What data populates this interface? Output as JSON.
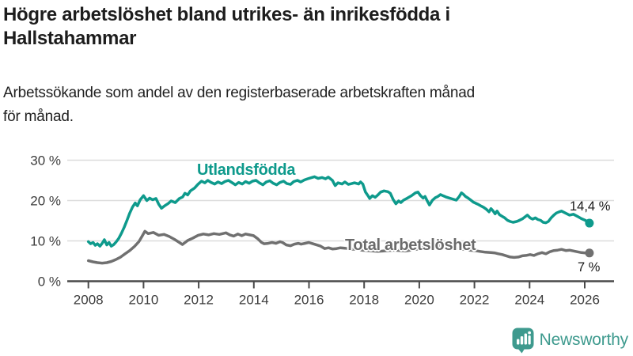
{
  "header": {
    "title_lines": [
      "Högre arbetslöshet bland utrikes- än inrikesfödda i",
      "Hallstahammar"
    ],
    "subtitle_lines": [
      "Arbetssökande som andel av den registerbaserade arbetskraften månad",
      "för månad."
    ]
  },
  "chart_data": {
    "type": "line",
    "title": "Högre arbetslöshet bland utrikes- än inrikesfödda i Hallstahammar",
    "subtitle": "Arbetssökande som andel av den registerbaserade arbetskraften månad för månad.",
    "xlabel": "",
    "ylabel": "",
    "x_domain": [
      2007.9,
      2026.6
    ],
    "y_domain": [
      0,
      32
    ],
    "grid": "horizontal",
    "y_grid_values": [
      10,
      20,
      30
    ],
    "y_ticks": [
      {
        "value": 0,
        "label": "0 %"
      },
      {
        "value": 10,
        "label": "10 %"
      },
      {
        "value": 20,
        "label": "20 %"
      },
      {
        "value": 30,
        "label": "30 %"
      }
    ],
    "x_ticks": [
      {
        "value": 2008,
        "label": "2008"
      },
      {
        "value": 2010,
        "label": "2010"
      },
      {
        "value": 2012,
        "label": "2012"
      },
      {
        "value": 2014,
        "label": "2014"
      },
      {
        "value": 2016,
        "label": "2016"
      },
      {
        "value": 2018,
        "label": "2018"
      },
      {
        "value": 2020,
        "label": "2020"
      },
      {
        "value": 2022,
        "label": "2022"
      },
      {
        "value": 2024,
        "label": "2024"
      },
      {
        "value": 2026,
        "label": "2026"
      }
    ],
    "series": [
      {
        "name": "Utlandsfödda",
        "color": "#0e9a8c",
        "end_label": "14,4 %",
        "end_value": 14.4,
        "points": [
          [
            2008.0,
            9.8
          ],
          [
            2008.08,
            9.3
          ],
          [
            2008.17,
            9.6
          ],
          [
            2008.25,
            8.9
          ],
          [
            2008.33,
            9.3
          ],
          [
            2008.42,
            8.7
          ],
          [
            2008.5,
            9.4
          ],
          [
            2008.58,
            10.3
          ],
          [
            2008.67,
            9.0
          ],
          [
            2008.75,
            9.6
          ],
          [
            2008.83,
            8.7
          ],
          [
            2008.92,
            9.1
          ],
          [
            2009.0,
            9.7
          ],
          [
            2009.1,
            10.6
          ],
          [
            2009.2,
            11.9
          ],
          [
            2009.3,
            13.4
          ],
          [
            2009.4,
            15.1
          ],
          [
            2009.5,
            16.9
          ],
          [
            2009.6,
            18.4
          ],
          [
            2009.7,
            19.4
          ],
          [
            2009.78,
            18.7
          ],
          [
            2009.88,
            20.2
          ],
          [
            2010.0,
            21.2
          ],
          [
            2010.12,
            20.0
          ],
          [
            2010.22,
            20.6
          ],
          [
            2010.33,
            20.2
          ],
          [
            2010.45,
            20.5
          ],
          [
            2010.55,
            19.1
          ],
          [
            2010.65,
            18.1
          ],
          [
            2010.75,
            18.6
          ],
          [
            2010.9,
            19.3
          ],
          [
            2011.0,
            19.9
          ],
          [
            2011.15,
            19.5
          ],
          [
            2011.3,
            20.5
          ],
          [
            2011.42,
            20.9
          ],
          [
            2011.5,
            21.8
          ],
          [
            2011.6,
            21.4
          ],
          [
            2011.7,
            22.4
          ],
          [
            2011.85,
            23.1
          ],
          [
            2011.97,
            24.0
          ],
          [
            2012.1,
            24.8
          ],
          [
            2012.22,
            24.4
          ],
          [
            2012.33,
            25.0
          ],
          [
            2012.45,
            24.5
          ],
          [
            2012.58,
            24.1
          ],
          [
            2012.7,
            24.6
          ],
          [
            2012.83,
            24.2
          ],
          [
            2012.95,
            24.7
          ],
          [
            2013.08,
            25.0
          ],
          [
            2013.2,
            24.5
          ],
          [
            2013.33,
            23.9
          ],
          [
            2013.45,
            24.5
          ],
          [
            2013.58,
            24.1
          ],
          [
            2013.7,
            24.7
          ],
          [
            2013.83,
            24.3
          ],
          [
            2013.95,
            24.8
          ],
          [
            2014.08,
            25.0
          ],
          [
            2014.2,
            24.4
          ],
          [
            2014.33,
            23.9
          ],
          [
            2014.45,
            24.6
          ],
          [
            2014.58,
            24.9
          ],
          [
            2014.7,
            24.3
          ],
          [
            2014.83,
            23.9
          ],
          [
            2014.95,
            24.5
          ],
          [
            2015.08,
            24.8
          ],
          [
            2015.2,
            24.2
          ],
          [
            2015.33,
            24.0
          ],
          [
            2015.45,
            24.7
          ],
          [
            2015.58,
            25.0
          ],
          [
            2015.7,
            24.6
          ],
          [
            2015.83,
            25.1
          ],
          [
            2015.95,
            25.4
          ],
          [
            2016.1,
            25.7
          ],
          [
            2016.2,
            25.9
          ],
          [
            2016.33,
            25.5
          ],
          [
            2016.47,
            25.7
          ],
          [
            2016.6,
            25.4
          ],
          [
            2016.7,
            25.8
          ],
          [
            2016.85,
            25.0
          ],
          [
            2016.95,
            23.7
          ],
          [
            2017.05,
            24.4
          ],
          [
            2017.2,
            24.1
          ],
          [
            2017.3,
            24.6
          ],
          [
            2017.43,
            24.0
          ],
          [
            2017.55,
            24.2
          ],
          [
            2017.65,
            24.4
          ],
          [
            2017.8,
            24.1
          ],
          [
            2017.87,
            24.6
          ],
          [
            2017.95,
            24.1
          ],
          [
            2018.05,
            22.1
          ],
          [
            2018.15,
            21.1
          ],
          [
            2018.2,
            20.5
          ],
          [
            2018.3,
            21.2
          ],
          [
            2018.4,
            20.8
          ],
          [
            2018.5,
            21.4
          ],
          [
            2018.6,
            22.1
          ],
          [
            2018.72,
            22.4
          ],
          [
            2018.86,
            22.2
          ],
          [
            2018.95,
            21.8
          ],
          [
            2019.05,
            20.3
          ],
          [
            2019.15,
            19.2
          ],
          [
            2019.25,
            19.9
          ],
          [
            2019.33,
            19.5
          ],
          [
            2019.43,
            20.1
          ],
          [
            2019.57,
            20.6
          ],
          [
            2019.72,
            21.2
          ],
          [
            2019.86,
            21.9
          ],
          [
            2019.95,
            22.1
          ],
          [
            2020.05,
            21.2
          ],
          [
            2020.14,
            20.6
          ],
          [
            2020.21,
            21.0
          ],
          [
            2020.29,
            19.9
          ],
          [
            2020.37,
            18.9
          ],
          [
            2020.48,
            20.1
          ],
          [
            2020.58,
            20.7
          ],
          [
            2020.67,
            21.0
          ],
          [
            2020.77,
            21.5
          ],
          [
            2020.86,
            21.2
          ],
          [
            2020.96,
            20.9
          ],
          [
            2021.05,
            20.7
          ],
          [
            2021.2,
            20.4
          ],
          [
            2021.34,
            20.1
          ],
          [
            2021.44,
            20.9
          ],
          [
            2021.53,
            21.9
          ],
          [
            2021.61,
            21.5
          ],
          [
            2021.68,
            21.0
          ],
          [
            2021.77,
            20.6
          ],
          [
            2021.87,
            20.1
          ],
          [
            2021.96,
            19.6
          ],
          [
            2022.06,
            19.3
          ],
          [
            2022.15,
            19.0
          ],
          [
            2022.25,
            18.6
          ],
          [
            2022.34,
            18.3
          ],
          [
            2022.44,
            17.8
          ],
          [
            2022.53,
            17.2
          ],
          [
            2022.6,
            18.0
          ],
          [
            2022.67,
            17.5
          ],
          [
            2022.75,
            16.7
          ],
          [
            2022.82,
            17.4
          ],
          [
            2022.91,
            16.5
          ],
          [
            2023.0,
            16.1
          ],
          [
            2023.1,
            15.7
          ],
          [
            2023.2,
            15.1
          ],
          [
            2023.3,
            14.8
          ],
          [
            2023.4,
            14.6
          ],
          [
            2023.53,
            14.8
          ],
          [
            2023.6,
            15.0
          ],
          [
            2023.75,
            15.5
          ],
          [
            2023.92,
            16.4
          ],
          [
            2024.02,
            15.7
          ],
          [
            2024.11,
            15.4
          ],
          [
            2024.21,
            15.7
          ],
          [
            2024.3,
            15.3
          ],
          [
            2024.4,
            15.1
          ],
          [
            2024.49,
            14.6
          ],
          [
            2024.59,
            14.5
          ],
          [
            2024.68,
            14.8
          ],
          [
            2024.78,
            15.7
          ],
          [
            2024.88,
            16.4
          ],
          [
            2024.97,
            16.9
          ],
          [
            2025.07,
            17.2
          ],
          [
            2025.16,
            17.4
          ],
          [
            2025.3,
            16.9
          ],
          [
            2025.45,
            16.4
          ],
          [
            2025.59,
            16.6
          ],
          [
            2025.73,
            16.1
          ],
          [
            2025.88,
            15.5
          ],
          [
            2026.02,
            15.1
          ],
          [
            2026.17,
            14.4
          ]
        ]
      },
      {
        "name": "Total arbetslöshet",
        "color": "#707070",
        "end_label": "7 %",
        "end_value": 7.0,
        "points": [
          [
            2008.0,
            5.1
          ],
          [
            2008.17,
            4.8
          ],
          [
            2008.33,
            4.6
          ],
          [
            2008.5,
            4.5
          ],
          [
            2008.67,
            4.6
          ],
          [
            2008.83,
            4.9
          ],
          [
            2009.0,
            5.4
          ],
          [
            2009.17,
            6.0
          ],
          [
            2009.33,
            6.8
          ],
          [
            2009.5,
            7.6
          ],
          [
            2009.67,
            8.6
          ],
          [
            2009.83,
            9.8
          ],
          [
            2009.95,
            11.2
          ],
          [
            2010.05,
            12.4
          ],
          [
            2010.17,
            11.8
          ],
          [
            2010.36,
            12.1
          ],
          [
            2010.55,
            11.4
          ],
          [
            2010.74,
            11.6
          ],
          [
            2010.93,
            11.1
          ],
          [
            2011.12,
            10.4
          ],
          [
            2011.3,
            9.6
          ],
          [
            2011.41,
            9.1
          ],
          [
            2011.6,
            10.1
          ],
          [
            2011.79,
            10.7
          ],
          [
            2011.98,
            11.4
          ],
          [
            2012.17,
            11.7
          ],
          [
            2012.36,
            11.5
          ],
          [
            2012.55,
            11.8
          ],
          [
            2012.75,
            11.6
          ],
          [
            2012.99,
            12.0
          ],
          [
            2013.13,
            11.5
          ],
          [
            2013.27,
            11.2
          ],
          [
            2013.42,
            11.7
          ],
          [
            2013.56,
            11.3
          ],
          [
            2013.7,
            11.7
          ],
          [
            2013.85,
            11.5
          ],
          [
            2013.99,
            11.3
          ],
          [
            2014.13,
            10.6
          ],
          [
            2014.28,
            9.6
          ],
          [
            2014.37,
            9.3
          ],
          [
            2014.52,
            9.4
          ],
          [
            2014.66,
            9.6
          ],
          [
            2014.8,
            9.4
          ],
          [
            2014.95,
            9.8
          ],
          [
            2015.04,
            9.6
          ],
          [
            2015.18,
            9.0
          ],
          [
            2015.33,
            8.8
          ],
          [
            2015.47,
            9.2
          ],
          [
            2015.61,
            9.4
          ],
          [
            2015.71,
            9.2
          ],
          [
            2015.85,
            9.4
          ],
          [
            2015.99,
            9.6
          ],
          [
            2016.14,
            9.3
          ],
          [
            2016.28,
            9.0
          ],
          [
            2016.42,
            8.7
          ],
          [
            2016.57,
            8.1
          ],
          [
            2016.71,
            8.3
          ],
          [
            2016.85,
            8.0
          ],
          [
            2017.0,
            8.1
          ],
          [
            2017.14,
            8.3
          ],
          [
            2017.3,
            8.2
          ],
          [
            2017.5,
            8.0
          ],
          [
            2017.7,
            7.9
          ],
          [
            2017.9,
            7.7
          ],
          [
            2018.1,
            7.6
          ],
          [
            2018.3,
            7.5
          ],
          [
            2018.5,
            7.4
          ],
          [
            2018.7,
            7.5
          ],
          [
            2018.9,
            7.6
          ],
          [
            2019.1,
            7.7
          ],
          [
            2019.3,
            7.6
          ],
          [
            2019.5,
            7.5
          ],
          [
            2019.7,
            7.7
          ],
          [
            2019.9,
            7.9
          ],
          [
            2020.1,
            8.3
          ],
          [
            2020.3,
            8.8
          ],
          [
            2020.45,
            9.1
          ],
          [
            2020.6,
            8.9
          ],
          [
            2020.8,
            8.7
          ],
          [
            2021.0,
            8.5
          ],
          [
            2021.2,
            8.3
          ],
          [
            2021.4,
            8.1
          ],
          [
            2021.6,
            7.9
          ],
          [
            2021.8,
            7.7
          ],
          [
            2022.0,
            7.6
          ],
          [
            2022.2,
            7.4
          ],
          [
            2022.4,
            7.2
          ],
          [
            2022.6,
            7.1
          ],
          [
            2022.75,
            7.0
          ],
          [
            2022.87,
            6.8
          ],
          [
            2023.01,
            6.6
          ],
          [
            2023.16,
            6.3
          ],
          [
            2023.3,
            6.0
          ],
          [
            2023.44,
            5.9
          ],
          [
            2023.59,
            6.0
          ],
          [
            2023.73,
            6.3
          ],
          [
            2023.87,
            6.4
          ],
          [
            2024.02,
            6.6
          ],
          [
            2024.16,
            6.4
          ],
          [
            2024.3,
            6.8
          ],
          [
            2024.45,
            7.1
          ],
          [
            2024.59,
            6.8
          ],
          [
            2024.73,
            7.3
          ],
          [
            2024.88,
            7.6
          ],
          [
            2025.02,
            7.7
          ],
          [
            2025.16,
            7.9
          ],
          [
            2025.31,
            7.6
          ],
          [
            2025.45,
            7.7
          ],
          [
            2025.6,
            7.5
          ],
          [
            2025.74,
            7.3
          ],
          [
            2025.88,
            7.1
          ],
          [
            2026.03,
            7.0
          ],
          [
            2026.17,
            7.0
          ]
        ]
      }
    ],
    "legend_position": "inline-labels"
  },
  "branding": {
    "logo_text": "Newsworthy",
    "logo_color": "#3e9a8e",
    "logo_icon": "bar-chart-speech-bubble-icon"
  }
}
